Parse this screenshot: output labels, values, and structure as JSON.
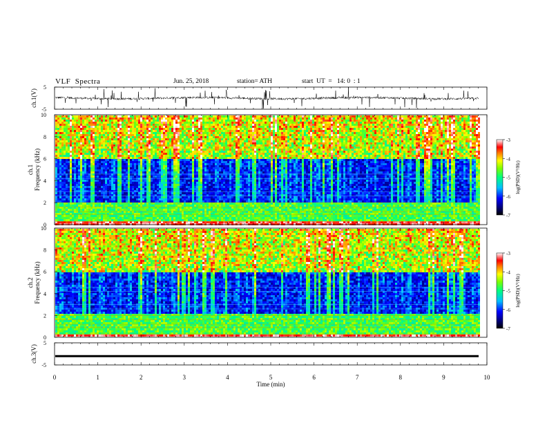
{
  "header": {
    "title": "VLF  Spectra",
    "date": "Jun. 25, 2018",
    "station": "station= ATH",
    "start": "start  UT  =   14: 0  : 1"
  },
  "chart_data": [
    {
      "type": "line",
      "ylabel": "ch.1(V)",
      "ylim": [
        -5,
        5
      ],
      "yticks": [
        "5",
        "-5"
      ],
      "xlim": [
        0,
        10
      ],
      "note": "waveform"
    },
    {
      "type": "heatmap",
      "ylabel": "ch.1\nFrequency (kHz)",
      "ylim": [
        0,
        10
      ],
      "yticks": [
        "0",
        "2",
        "4",
        "6",
        "8",
        "10"
      ],
      "xlim": [
        0,
        10
      ],
      "colorbar": {
        "label": "log(PSD)(V²/Hz)",
        "range": [
          -7,
          -3
        ],
        "ticks": [
          "-3",
          "-4",
          "-5",
          "-6",
          "-7"
        ]
      }
    },
    {
      "type": "heatmap",
      "ylabel": "ch.2\nFrequency (kHz)",
      "ylim": [
        0,
        10
      ],
      "yticks": [
        "0",
        "2",
        "4",
        "6",
        "8",
        "10"
      ],
      "xlim": [
        0,
        10
      ],
      "colorbar": {
        "label": "log(PSD)(V²/Hz)",
        "range": [
          -7,
          -3
        ],
        "ticks": [
          "-3",
          "-4",
          "-5",
          "-6",
          "-7"
        ]
      }
    },
    {
      "type": "line",
      "ylabel": "ch.3(V)",
      "ylim": [
        -5,
        5
      ],
      "yticks": [
        "5",
        "-5"
      ],
      "xlim": [
        0,
        10
      ],
      "xlabel": "Time  (min)",
      "xticks": [
        "0",
        "1",
        "2",
        "3",
        "4",
        "5",
        "6",
        "7",
        "8",
        "9",
        "10"
      ],
      "note": "constant"
    }
  ]
}
